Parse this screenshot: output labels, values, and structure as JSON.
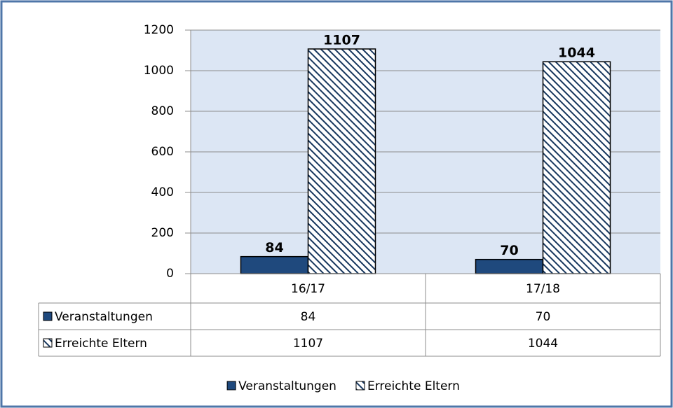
{
  "chart_data": {
    "type": "bar",
    "categories": [
      "16/17",
      "17/18"
    ],
    "series": [
      {
        "name": "Veranstaltungen",
        "color": "#1f497d",
        "pattern": "solid",
        "values": [
          84,
          70
        ]
      },
      {
        "name": "Erreichte Eltern",
        "color": "#17375e",
        "pattern": "hatch",
        "values": [
          1107,
          1044
        ]
      }
    ],
    "ylim": [
      0,
      1200
    ],
    "yticks": [
      0,
      200,
      400,
      600,
      800,
      1000,
      1200
    ],
    "grid": true,
    "data_table": true,
    "legend": "bottom"
  }
}
